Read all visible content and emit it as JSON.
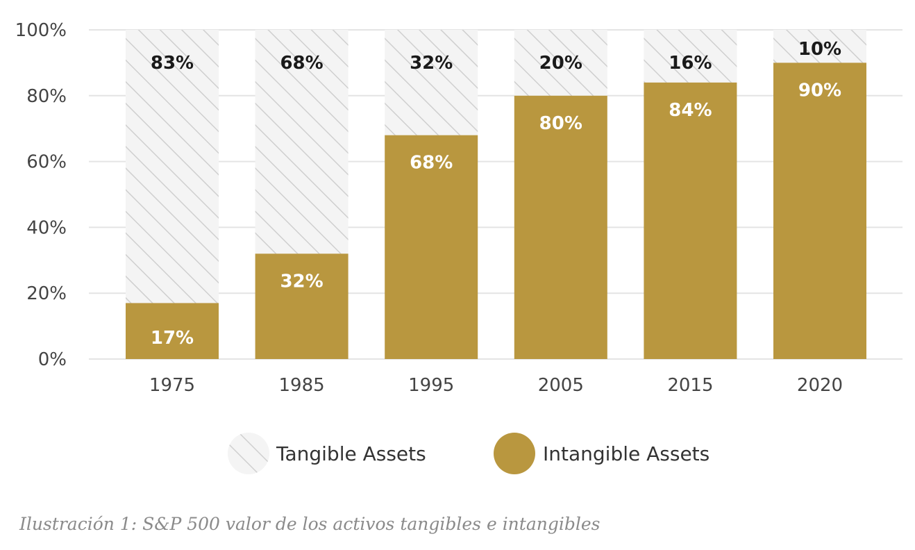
{
  "chart_data": {
    "type": "bar",
    "stacked": true,
    "categories": [
      "1975",
      "1985",
      "1995",
      "2005",
      "2015",
      "2020"
    ],
    "series": [
      {
        "name": "Intangible Assets",
        "values": [
          17,
          32,
          68,
          80,
          84,
          90
        ],
        "labels": [
          "17%",
          "32%",
          "68%",
          "80%",
          "84%",
          "90%"
        ],
        "color": "#b9973f",
        "pattern": "solid"
      },
      {
        "name": "Tangible Assets",
        "values": [
          83,
          68,
          32,
          20,
          16,
          10
        ],
        "labels": [
          "83%",
          "68%",
          "32%",
          "20%",
          "16%",
          "10%"
        ],
        "color": "#e6e6e6",
        "pattern": "diagonal-hatch"
      }
    ],
    "ylim": [
      0,
      100
    ],
    "yticks": [
      0,
      20,
      40,
      60,
      80,
      100
    ],
    "ytick_labels": [
      "0%",
      "20%",
      "40%",
      "60%",
      "80%",
      "100%"
    ],
    "grid": true,
    "legend_position": "bottom-center"
  },
  "caption": "Ilustración 1: S&P 500 valor de los activos tangibles e intangibles"
}
